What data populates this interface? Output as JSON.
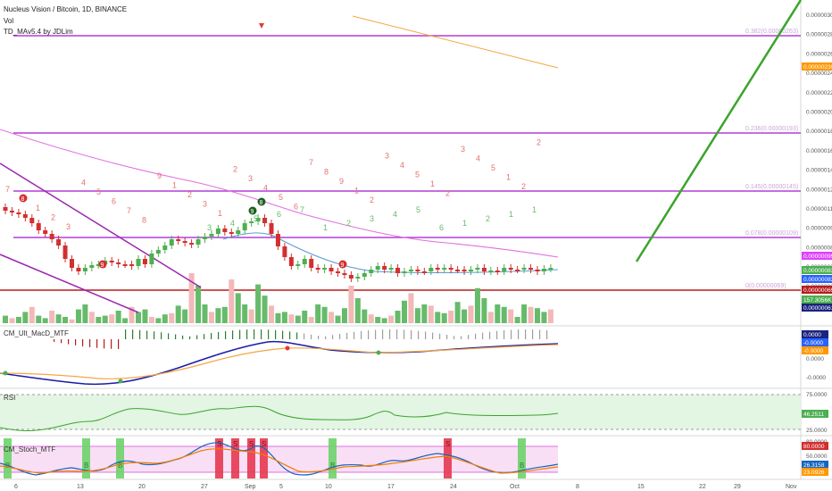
{
  "header": {
    "title": "Nucleus Vision / Bitcoin, 1D, BINANCE",
    "vol": "Vol",
    "indicator": "TD_MAv5.4 by JDLim"
  },
  "panels": {
    "macd_label": "CM_Ult_MacD_MTF",
    "rsi_label": "RSI",
    "stoch_label": "CM_Stoch_MTF"
  },
  "fib_labels": [
    "0.382(0.00000263)",
    "0.236(0.00000193)",
    "0.145(0.00000145)",
    "0.078(0.00000109)",
    "0(0.00000069)"
  ],
  "price_axis": [
    "0.00000300",
    "0.00000280",
    "0.00000260",
    "0.00000240",
    "0.00000220",
    "0.00000200",
    "0.00000180",
    "0.00000160",
    "0.00000140",
    "0.00000125",
    "0.00000110",
    "0.00000095",
    "0.00000080",
    "0.00000069",
    "0.00000061"
  ],
  "price_badges": [
    {
      "text": "0.00000239",
      "color": "#ff9800"
    },
    {
      "text": "0.00000099",
      "color": "#e040fb"
    },
    {
      "text": "0.00000083",
      "color": "#4caf50"
    },
    {
      "text": "0.00000082",
      "color": "#2962ff"
    },
    {
      "text": "0.00000069",
      "color": "#b71c1c"
    },
    {
      "text": "157.3056K",
      "color": "#4caf50"
    },
    {
      "text": "0.00000061",
      "color": "#1a237e"
    }
  ],
  "macd_badges": [
    {
      "text": "0.0000",
      "color": "#1a237e"
    },
    {
      "text": "-0.0000",
      "color": "#2962ff"
    },
    {
      "text": "-0.0000",
      "color": "#ff9800"
    }
  ],
  "macd_axis": [
    "0.0000",
    "-0.0000"
  ],
  "rsi_axis": [
    "75.0000",
    "25.0000"
  ],
  "rsi_badge": {
    "text": "46.2511",
    "color": "#4caf50"
  },
  "stoch_axis": [
    "80.0000",
    "50.0000"
  ],
  "stoch_badges": [
    {
      "text": "80.0000",
      "color": "#d32f2f"
    },
    {
      "text": "26.3158",
      "color": "#1565c0"
    },
    {
      "text": "23.0926",
      "color": "#ff9800"
    }
  ],
  "time_axis": [
    "6",
    "13",
    "20",
    "27",
    "Sep",
    "5",
    "10",
    "17",
    "24",
    "Oct",
    "8",
    "15",
    "22",
    "29",
    "Nov"
  ],
  "td_numbers_red": [
    "7",
    "8",
    "1",
    "2",
    "3",
    "4",
    "5",
    "6",
    "7",
    "8",
    "9",
    "1",
    "2",
    "3",
    "1",
    "2",
    "3",
    "4",
    "5",
    "6",
    "7",
    "8",
    "9",
    "1",
    "2",
    "3",
    "4",
    "5",
    "1",
    "2",
    "3",
    "4",
    "5",
    "1",
    "2",
    "2"
  ],
  "td_numbers_green": [
    "3",
    "4",
    "5",
    "6",
    "7",
    "1",
    "2",
    "3",
    "4",
    "5",
    "6",
    "1",
    "2",
    "1",
    "1"
  ],
  "td_circles": [
    "8",
    "9",
    "9",
    "8",
    "9"
  ],
  "stoch_signals": [
    "B",
    "B",
    "B",
    "S",
    "S",
    "S",
    "S",
    "B",
    "S",
    "B"
  ],
  "colors": {
    "up": "#4caf50",
    "down": "#d32f2f",
    "fib": "#b23fd6",
    "ma_pink": "#e06fe0",
    "trend_green": "#3aa52a",
    "trend_purple": "#9c27b0"
  }
}
